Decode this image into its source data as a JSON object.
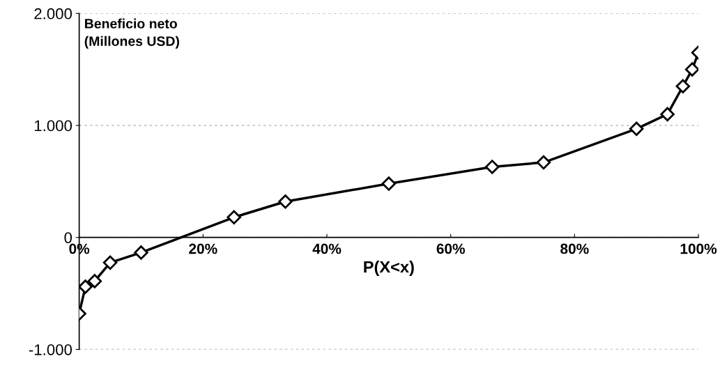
{
  "chart_data": {
    "type": "line",
    "xlabel": "P(X<x)",
    "ylabel": "Beneficio neto\n(Millones USD)",
    "x": [
      0,
      0.01,
      0.025,
      0.05,
      0.1,
      0.25,
      0.333,
      0.5,
      0.667,
      0.75,
      0.9,
      0.95,
      0.975,
      0.99,
      1.0
    ],
    "series": [
      {
        "color": "#000000",
        "values": [
          -680,
          -440,
          -390,
          -225,
          -135,
          180,
          320,
          480,
          630,
          670,
          970,
          1100,
          1350,
          1500,
          1650
        ]
      }
    ],
    "xlim": [
      0,
      1
    ],
    "ylim": [
      -1000,
      2000
    ],
    "xticks": [
      {
        "value": 0,
        "label": "0%"
      },
      {
        "value": 0.2,
        "label": "20%"
      },
      {
        "value": 0.4,
        "label": "40%"
      },
      {
        "value": 0.6,
        "label": "60%"
      },
      {
        "value": 0.8,
        "label": "80%"
      },
      {
        "value": 1.0,
        "label": "100%"
      }
    ],
    "yticks": [
      {
        "value": -1000,
        "label": "-1.000"
      },
      0,
      {
        "value": 1000,
        "label": "1.000"
      },
      {
        "value": 2000,
        "label": "2.000"
      }
    ],
    "grid": "y",
    "marker": "diamond",
    "line_style": "solid",
    "legend": false
  }
}
